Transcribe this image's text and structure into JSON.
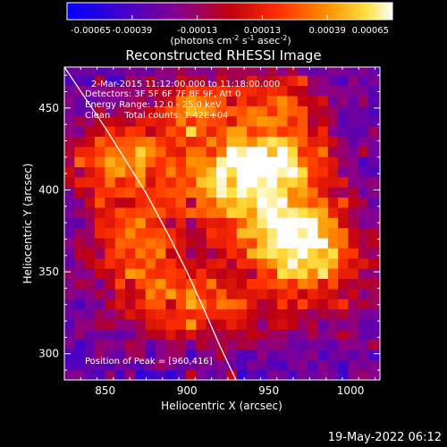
{
  "chart_data": {
    "type": "heatmap",
    "title": "Reconstructed RHESSI Image",
    "xlabel": "Heliocentric X (arcsec)",
    "ylabel": "Heliocentric Y (arcsec)",
    "xlim": [
      825,
      1018
    ],
    "ylim": [
      284,
      475
    ],
    "x_ticks": [
      850,
      900,
      950,
      1000
    ],
    "y_ticks": [
      300,
      350,
      400,
      450
    ],
    "colorbar": {
      "range": [
        -0.00065,
        0.00065
      ],
      "tick_values": [
        -0.00065,
        -0.00039,
        -0.00013,
        0.00013,
        0.00039,
        0.00065
      ],
      "tick_labels": [
        "-0.00065",
        "-0.00039",
        "-0.00013",
        "0.00013",
        "0.00039",
        "0.00065"
      ],
      "unit_base": "(photons cm",
      "unit_exp1": "-2",
      "unit_mid": " s",
      "unit_exp2": "-1",
      "unit_mid2": " asec",
      "unit_exp3": "-2",
      "unit_end": ")"
    },
    "annotations": {
      "line1": "2-Mar-2015 11:12:00.000 to 11:18:00.000",
      "line2": "Detectors: 3F 5F 6F 7F 8F 9F, Att 0",
      "line3": "Energy Range: 12.0 - 25.0 keV",
      "line4": "Clean     Total counts: 1.42E+04",
      "peak": "Position of Peak = [960,416]"
    },
    "peak": [
      960,
      416
    ],
    "limb_curve": [
      [
        823,
        478
      ],
      [
        850,
        438
      ],
      [
        875,
        398
      ],
      [
        890,
        370
      ],
      [
        900,
        350
      ],
      [
        910,
        328
      ],
      [
        920,
        305
      ],
      [
        930,
        284
      ]
    ],
    "sources": [
      {
        "x": 958,
        "y": 418,
        "amp": 0.0006,
        "sx": 22,
        "sy": 16
      },
      {
        "x": 925,
        "y": 405,
        "amp": 0.0005,
        "sx": 20,
        "sy": 18
      },
      {
        "x": 960,
        "y": 375,
        "amp": 0.00048,
        "sx": 22,
        "sy": 16
      },
      {
        "x": 980,
        "y": 355,
        "amp": 0.00035,
        "sx": 24,
        "sy": 22
      },
      {
        "x": 860,
        "y": 420,
        "amp": 0.0004,
        "sx": 26,
        "sy": 16
      },
      {
        "x": 870,
        "y": 370,
        "amp": 0.00036,
        "sx": 22,
        "sy": 22
      },
      {
        "x": 905,
        "y": 450,
        "amp": 0.00036,
        "sx": 20,
        "sy": 14
      },
      {
        "x": 905,
        "y": 330,
        "amp": 0.0003,
        "sx": 30,
        "sy": 18
      },
      {
        "x": 955,
        "y": 455,
        "amp": 0.00025,
        "sx": 18,
        "sy": 12
      }
    ],
    "background": -0.0003
  },
  "footer": {
    "date": "19-May-2022 06:12"
  }
}
